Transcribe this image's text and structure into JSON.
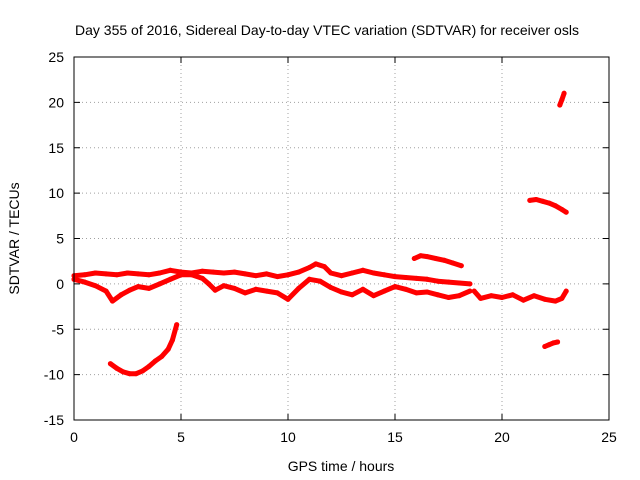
{
  "chart_data": {
    "type": "scatter",
    "title": "Day 355 of 2016, Sidereal Day-to-day VTEC variation (SDTVAR) for receiver osls",
    "xlabel": "GPS time / hours",
    "ylabel": "SDTVAR / TECUs",
    "xlim": [
      0,
      25
    ],
    "ylim": [
      -15,
      25
    ],
    "xticks": [
      0,
      5,
      10,
      15,
      20,
      25
    ],
    "yticks": [
      -15,
      -10,
      -5,
      0,
      5,
      10,
      15,
      20,
      25
    ],
    "grid": true,
    "legend": "none",
    "series_color": "#ff0000",
    "series": [
      {
        "name": "main-band-upper",
        "x": [
          0,
          0.5,
          1,
          1.5,
          2,
          2.5,
          3,
          3.5,
          4,
          4.5,
          5,
          5.5,
          6,
          6.5,
          7,
          7.5,
          8,
          8.5,
          9,
          9.5,
          10,
          10.5,
          11,
          11.3,
          11.7,
          12,
          12.5,
          13,
          13.5,
          14,
          14.5,
          15,
          15.5,
          16,
          16.5,
          17,
          17.5,
          18,
          18.5
        ],
        "y": [
          0.9,
          1.0,
          1.2,
          1.1,
          1.0,
          1.2,
          1.1,
          1.0,
          1.2,
          1.5,
          1.3,
          1.2,
          1.4,
          1.3,
          1.2,
          1.3,
          1.1,
          0.9,
          1.1,
          0.8,
          1.0,
          1.3,
          1.8,
          2.2,
          1.9,
          1.2,
          0.9,
          1.2,
          1.5,
          1.2,
          1.0,
          0.8,
          0.7,
          0.6,
          0.5,
          0.3,
          0.2,
          0.1,
          0.0
        ]
      },
      {
        "name": "main-band-lower",
        "x": [
          0,
          0.5,
          1,
          1.5,
          1.8,
          2.2,
          2.6,
          3,
          3.5,
          4,
          4.5,
          5,
          5.5,
          6,
          6.3,
          6.6,
          7,
          7.5,
          8,
          8.5,
          9,
          9.5,
          10,
          10.5,
          11,
          11.5,
          12,
          12.5,
          13,
          13.5,
          14,
          14.5,
          15,
          15.5,
          16,
          16.5,
          17,
          17.5,
          18,
          18.5
        ],
        "y": [
          0.5,
          0.2,
          -0.2,
          -0.8,
          -1.9,
          -1.2,
          -0.7,
          -0.3,
          -0.5,
          0.0,
          0.5,
          1.0,
          1.0,
          0.6,
          0.0,
          -0.7,
          -0.2,
          -0.5,
          -1.0,
          -0.6,
          -0.8,
          -1.0,
          -1.7,
          -0.5,
          0.5,
          0.3,
          -0.4,
          -0.9,
          -1.2,
          -0.6,
          -1.3,
          -0.8,
          -0.3,
          -0.6,
          -1.0,
          -0.9,
          -1.2,
          -1.5,
          -1.3,
          -0.8
        ]
      },
      {
        "name": "main-band-tail",
        "x": [
          18.7,
          19,
          19.5,
          20,
          20.5,
          21,
          21.5,
          22,
          22.5,
          22.8,
          23
        ],
        "y": [
          -0.8,
          -1.6,
          -1.3,
          -1.5,
          -1.2,
          -1.8,
          -1.3,
          -1.7,
          -1.9,
          -1.6,
          -0.8
        ]
      },
      {
        "name": "low-arc",
        "x": [
          1.7,
          2,
          2.3,
          2.6,
          2.9,
          3.2,
          3.5,
          3.8,
          4.1,
          4.4,
          4.6,
          4.8
        ],
        "y": [
          -8.8,
          -9.3,
          -9.7,
          -9.9,
          -9.9,
          -9.6,
          -9.1,
          -8.5,
          -8.0,
          -7.2,
          -6.2,
          -4.5
        ]
      },
      {
        "name": "arc-around-16h",
        "x": [
          15.9,
          16.2,
          16.5,
          16.9,
          17.3,
          17.7,
          18.1
        ],
        "y": [
          2.8,
          3.1,
          3.0,
          2.8,
          2.6,
          2.3,
          2.0
        ]
      },
      {
        "name": "arc-21-23h",
        "x": [
          21.3,
          21.6,
          21.9,
          22.2,
          22.5,
          22.8,
          23.0
        ],
        "y": [
          9.2,
          9.3,
          9.1,
          8.9,
          8.6,
          8.2,
          7.9
        ]
      },
      {
        "name": "arc-near-23h-high",
        "x": [
          22.7,
          22.8,
          22.9
        ],
        "y": [
          19.7,
          20.3,
          21.0
        ]
      },
      {
        "name": "arc-near-22h-low",
        "x": [
          22.0,
          22.2,
          22.4,
          22.6
        ],
        "y": [
          -6.9,
          -6.7,
          -6.5,
          -6.4
        ]
      }
    ]
  }
}
